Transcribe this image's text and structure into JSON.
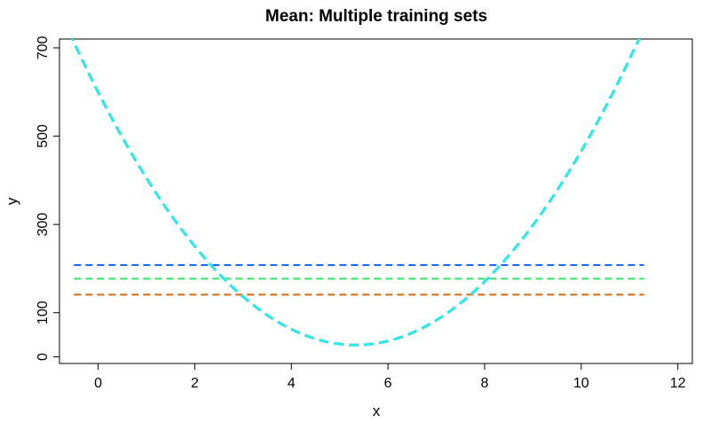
{
  "chart_data": {
    "type": "line",
    "title": "Mean: Multiple training sets",
    "xlabel": "x",
    "ylabel": "y",
    "xlim": [
      -0.8,
      12.3
    ],
    "ylim": [
      -15,
      720
    ],
    "x_ticks": [
      "0",
      "2",
      "4",
      "6",
      "8",
      "10",
      "12"
    ],
    "y_ticks": [
      "0",
      "100",
      "300",
      "500",
      "700"
    ],
    "y_tick_values": [
      0,
      100,
      300,
      500,
      700
    ],
    "x_tick_values": [
      0,
      2,
      4,
      6,
      8,
      10,
      12
    ],
    "grid": false,
    "series": [
      {
        "style": "dashed",
        "color": "#1a66ff",
        "x": [
          -0.5,
          11.3
        ],
        "y": [
          208,
          208
        ]
      },
      {
        "style": "dashed",
        "color": "#33e06a",
        "x": [
          -0.5,
          11.3
        ],
        "y": [
          177,
          177
        ]
      },
      {
        "style": "dashed",
        "color": "#cc6a14",
        "x": [
          -0.5,
          11.3
        ],
        "y": [
          141,
          141
        ]
      },
      {
        "style": "dashed",
        "color": "#2ee6e6",
        "curve": "quadratic",
        "x": [
          -0.6,
          0,
          1,
          2,
          3,
          4,
          5,
          5.4,
          6,
          7,
          8,
          9,
          10,
          11,
          11.3
        ],
        "y": [
          722,
          598,
          419,
          270,
          150,
          60,
          8,
          3,
          17,
          88,
          188,
          318,
          478,
          668,
          732
        ]
      }
    ]
  }
}
